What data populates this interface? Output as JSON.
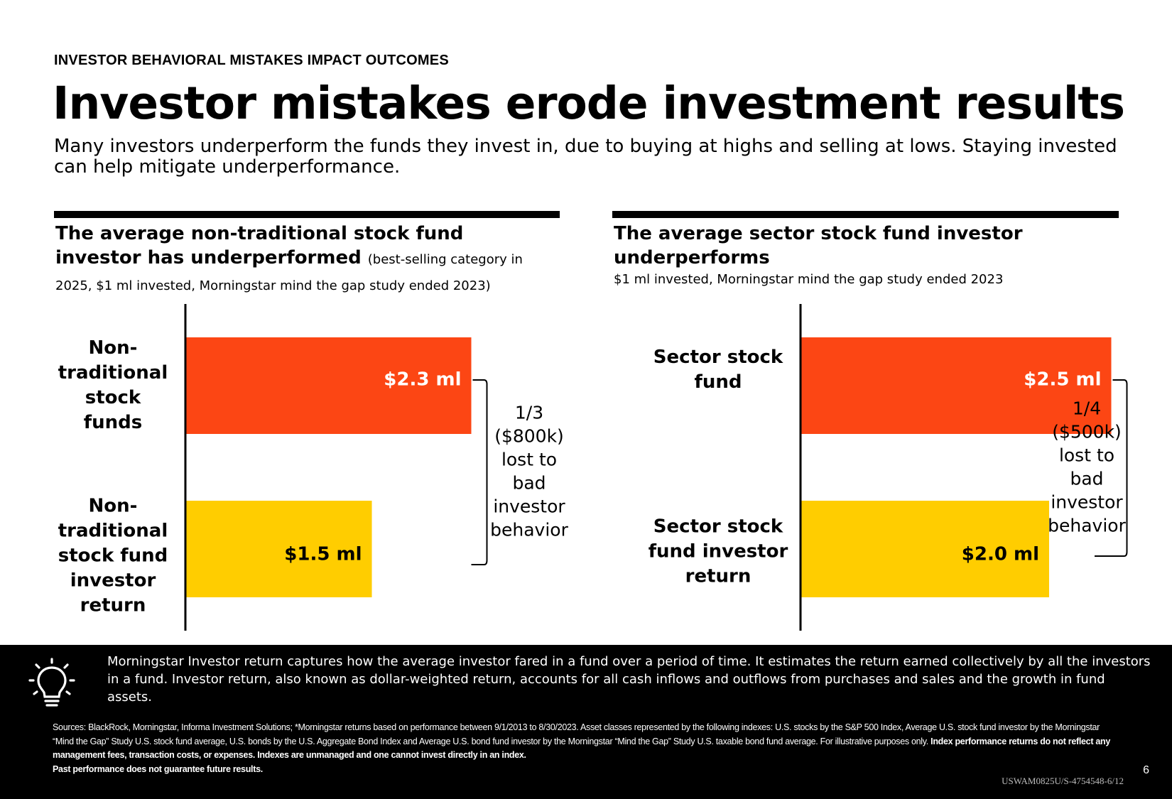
{
  "header": {
    "eyebrow": "INVESTOR BEHAVIORAL MISTAKES IMPACT OUTCOMES",
    "title": "Investor mistakes erode investment results",
    "subtitle": "Many investors underperform the funds they invest in, due to buying at highs and selling at lows. Staying invested can help mitigate underperformance."
  },
  "colors": {
    "fund": "#fc4614",
    "investor": "#ffcd00",
    "ink": "#000000"
  },
  "panels": [
    {
      "title": "The average non-traditional stock fund investor has underperformed",
      "note": "(best-selling category in 2025, $1 ml invested, Morningstar mind the gap study ended 2023)",
      "subtitle": ""
    },
    {
      "title": "The average sector stock fund investor underperforms",
      "note": "",
      "subtitle": "$1 ml invested, Morningstar mind the gap study ended 2023"
    }
  ],
  "chart_data": [
    {
      "type": "bar",
      "orientation": "horizontal",
      "title": "The average non-traditional stock fund investor has underperformed",
      "categories": [
        [
          "Non-",
          "traditional",
          "stock",
          "funds"
        ],
        [
          "Non-",
          "traditional",
          "stock fund",
          "investor",
          "return"
        ]
      ],
      "values": [
        2.3,
        1.5
      ],
      "value_labels": [
        "$2.3 ml",
        "$1.5 ml"
      ],
      "annotation": [
        "1/3",
        "($800k)",
        "lost to",
        "bad",
        "investor",
        "behavior"
      ],
      "xlim": [
        0,
        3.42
      ]
    },
    {
      "type": "bar",
      "orientation": "horizontal",
      "title": "The average sector stock fund investor underperforms",
      "categories": [
        [
          "Sector stock",
          "fund"
        ],
        [
          "Sector stock",
          "fund investor",
          "return"
        ]
      ],
      "values": [
        2.5,
        2.0
      ],
      "value_labels": [
        "$2.5 ml",
        "$2.0 ml"
      ],
      "annotation": [
        "1/4",
        "($500k)",
        "lost to",
        "bad",
        "investor",
        "behavior"
      ],
      "xlim": [
        0,
        3.42
      ]
    }
  ],
  "footer": {
    "icon": "lightbulb-icon",
    "info": "Morningstar Investor return captures how the average investor fared in a fund over a period of time. It estimates the return earned collectively by all the investors in a fund. Investor return, also known as dollar-weighted return, accounts for all cash inflows and outflows from purchases and sales and the growth in fund assets.",
    "sources": "Sources: BlackRock, Morningstar, Informa Investment Solutions; *Morningstar returns based on performance between 9/1/2013 to 8/30/2023. Asset classes represented by the following indexes:  U.S. stocks by the S&P 500 Index, Average U.S. stock fund investor by the Morningstar “Mind the Gap” Study U.S. stock fund average, U.S. bonds by the  U.S. Aggregate Bond Index and Average U.S. bond fund investor by the Morningstar “Mind the Gap” Study U.S. taxable bond fund average.  For illustrative purposes only.",
    "sources_bold_1": "Index performance returns do not reflect any management fees, transaction costs, or expenses. Indexes are unmanaged and one cannot invest directly in an index.",
    "sources_bold_2": "Past performance does not guarantee future results.",
    "page_number": "6",
    "doc_code": "USWAM0825U/S-4754548-6/12"
  }
}
